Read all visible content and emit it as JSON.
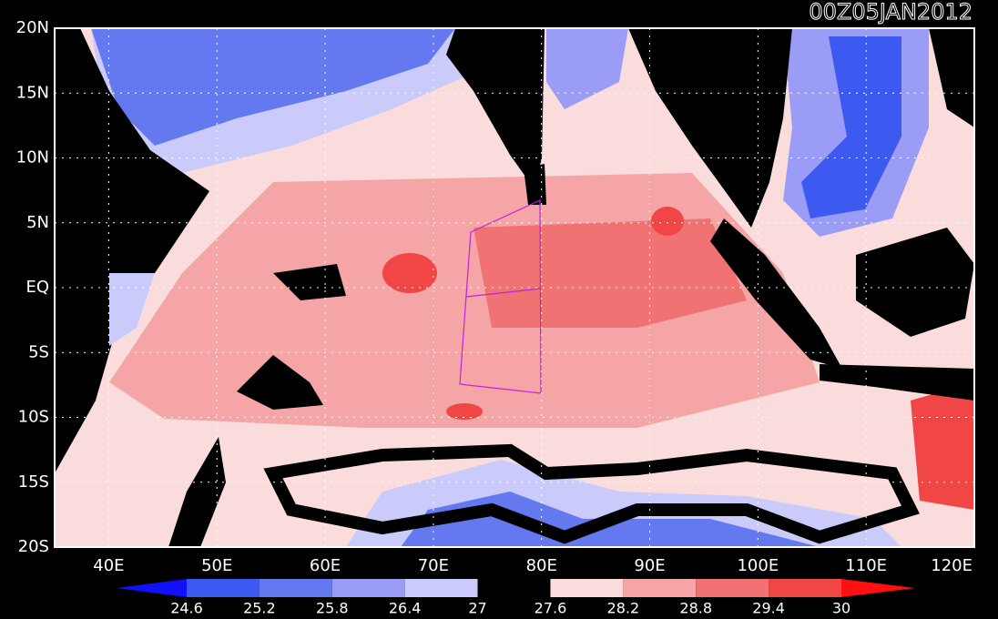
{
  "title": "00Z05JAN2012",
  "map": {
    "lat_labels": [
      "20N",
      "15N",
      "10N",
      "5N",
      "EQ",
      "5S",
      "10S",
      "15S",
      "20S"
    ],
    "lon_labels": [
      "40E",
      "50E",
      "60E",
      "70E",
      "80E",
      "90E",
      "100E",
      "110E",
      "120E"
    ]
  },
  "colorbar": {
    "levels": [
      24.6,
      25.2,
      25.8,
      26.4,
      27,
      27.6,
      28.2,
      28.8,
      29.4,
      30
    ],
    "colors": [
      "#1010ff",
      "#3c5af0",
      "#6478f0",
      "#9a9cf5",
      "#cacbfa",
      "#000000",
      "#fadcdc",
      "#f5a5a5",
      "#f07272",
      "#f04646",
      "#ff1010"
    ]
  }
}
